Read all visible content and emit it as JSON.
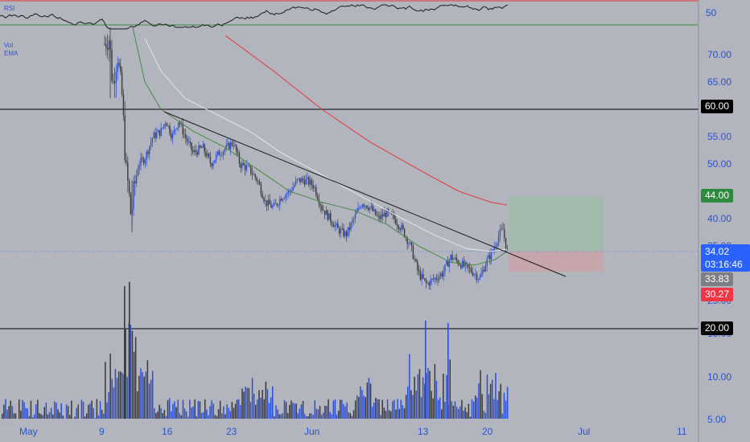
{
  "chart_data": {
    "type": "candlestick",
    "indicators": {
      "rsi_label": "RSI",
      "vol_label": "Vol",
      "ema_label": "EMA",
      "rsi_axis_label": "50"
    },
    "price_axis": {
      "ticks": [
        "70.00",
        "65.00",
        "55.00",
        "50.00",
        "40.00",
        "35.00",
        "25.00"
      ],
      "tick_values": [
        70,
        65,
        55,
        50,
        40,
        35,
        25
      ]
    },
    "volume_axis": {
      "ticks": [
        "15.00",
        "10.00",
        "5.00"
      ],
      "tick_values": [
        15,
        10,
        5
      ]
    },
    "time_axis": {
      "labels": [
        "May",
        "9",
        "16",
        "23",
        "Jun",
        "13",
        "20",
        "Jul",
        "11"
      ]
    },
    "levels": [
      {
        "value": 60,
        "label": "60.00"
      },
      {
        "value": 20,
        "label": "20.00"
      }
    ],
    "target_price": {
      "value": 44,
      "label": "44.00",
      "color": "#2e8b3e"
    },
    "current_price": {
      "value": 34.02,
      "label": "34.02",
      "color": "#2962ff"
    },
    "countdown": "03:16:46",
    "ema_price": {
      "value": 33.83,
      "label": "33.83",
      "color": "#7d7f85"
    },
    "stop_price": {
      "value": 30.27,
      "label": "30.27",
      "color": "#f23645"
    },
    "colors": {
      "up": "#2d4fd8",
      "down": "#3a3a3a",
      "ema_red": "#e03a3a",
      "ema_white": "#e6e6e6",
      "ema_green": "#4b8a45",
      "trendline": "#1c1c1c",
      "rsi_line": "#1c1c1c",
      "rsi_upper": "#e03a3a",
      "rsi_lower": "#3c8d3c",
      "profit_zone": "#9fbca9",
      "loss_zone": "#c9a3aa"
    }
  }
}
